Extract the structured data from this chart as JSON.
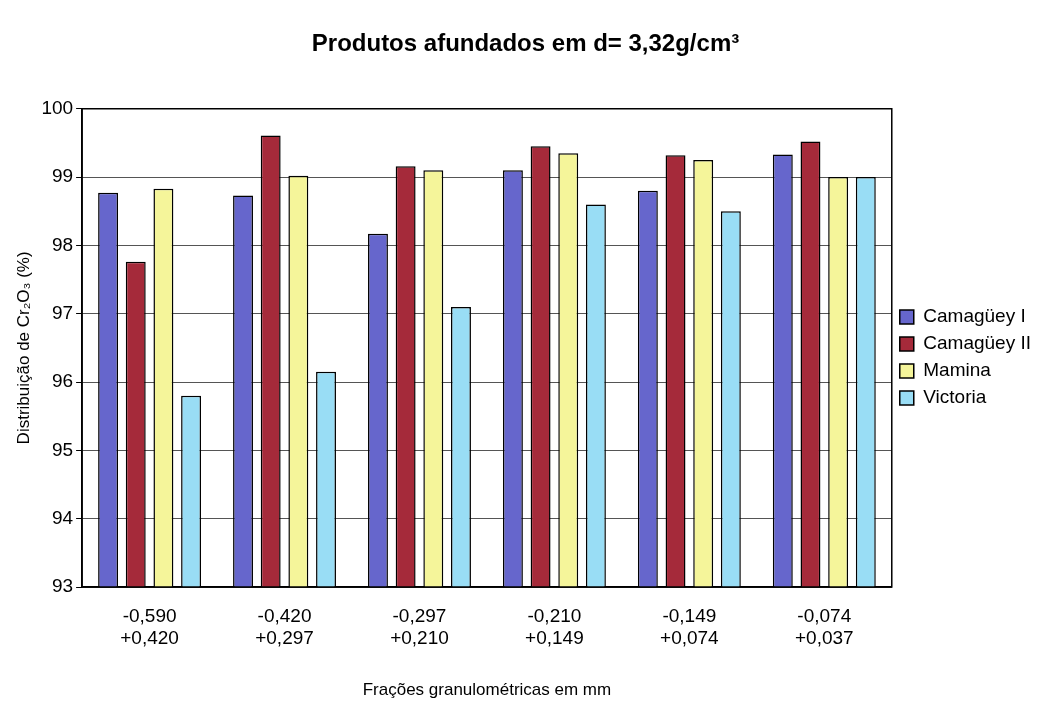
{
  "chart_data": {
    "type": "bar",
    "title": "Produtos afundados em d= 3,32g/cm³",
    "xlabel": "Frações granulométricas em mm",
    "ylabel": "Distribuição de Cr₂O₃ (%)",
    "categories": [
      "-0,590\n+0,420",
      "-0,420\n+0,297",
      "-0,297\n+0,210",
      "-0,210\n+0,149",
      "-0,149\n+0,074",
      "-0,074\n+0,037"
    ],
    "series": [
      {
        "name": "Camagüey I",
        "color": "#6666cc",
        "values": [
          98.77,
          98.73,
          98.17,
          99.1,
          98.8,
          99.33
        ]
      },
      {
        "name": "Camagüey II",
        "color": "#a52a3a",
        "values": [
          97.76,
          99.61,
          99.16,
          99.45,
          99.32,
          99.52
        ]
      },
      {
        "name": "Mamina",
        "color": "#f5f59a",
        "values": [
          98.83,
          99.02,
          99.1,
          99.35,
          99.25,
          99.0
        ]
      },
      {
        "name": "Victoria",
        "color": "#99ddf5",
        "values": [
          95.8,
          96.15,
          97.1,
          98.6,
          98.5,
          99.0
        ]
      }
    ],
    "ylim": [
      93,
      100
    ],
    "yticks": [
      93,
      94,
      95,
      96,
      97,
      98,
      99,
      100
    ],
    "grid": "y",
    "legend": "right"
  }
}
